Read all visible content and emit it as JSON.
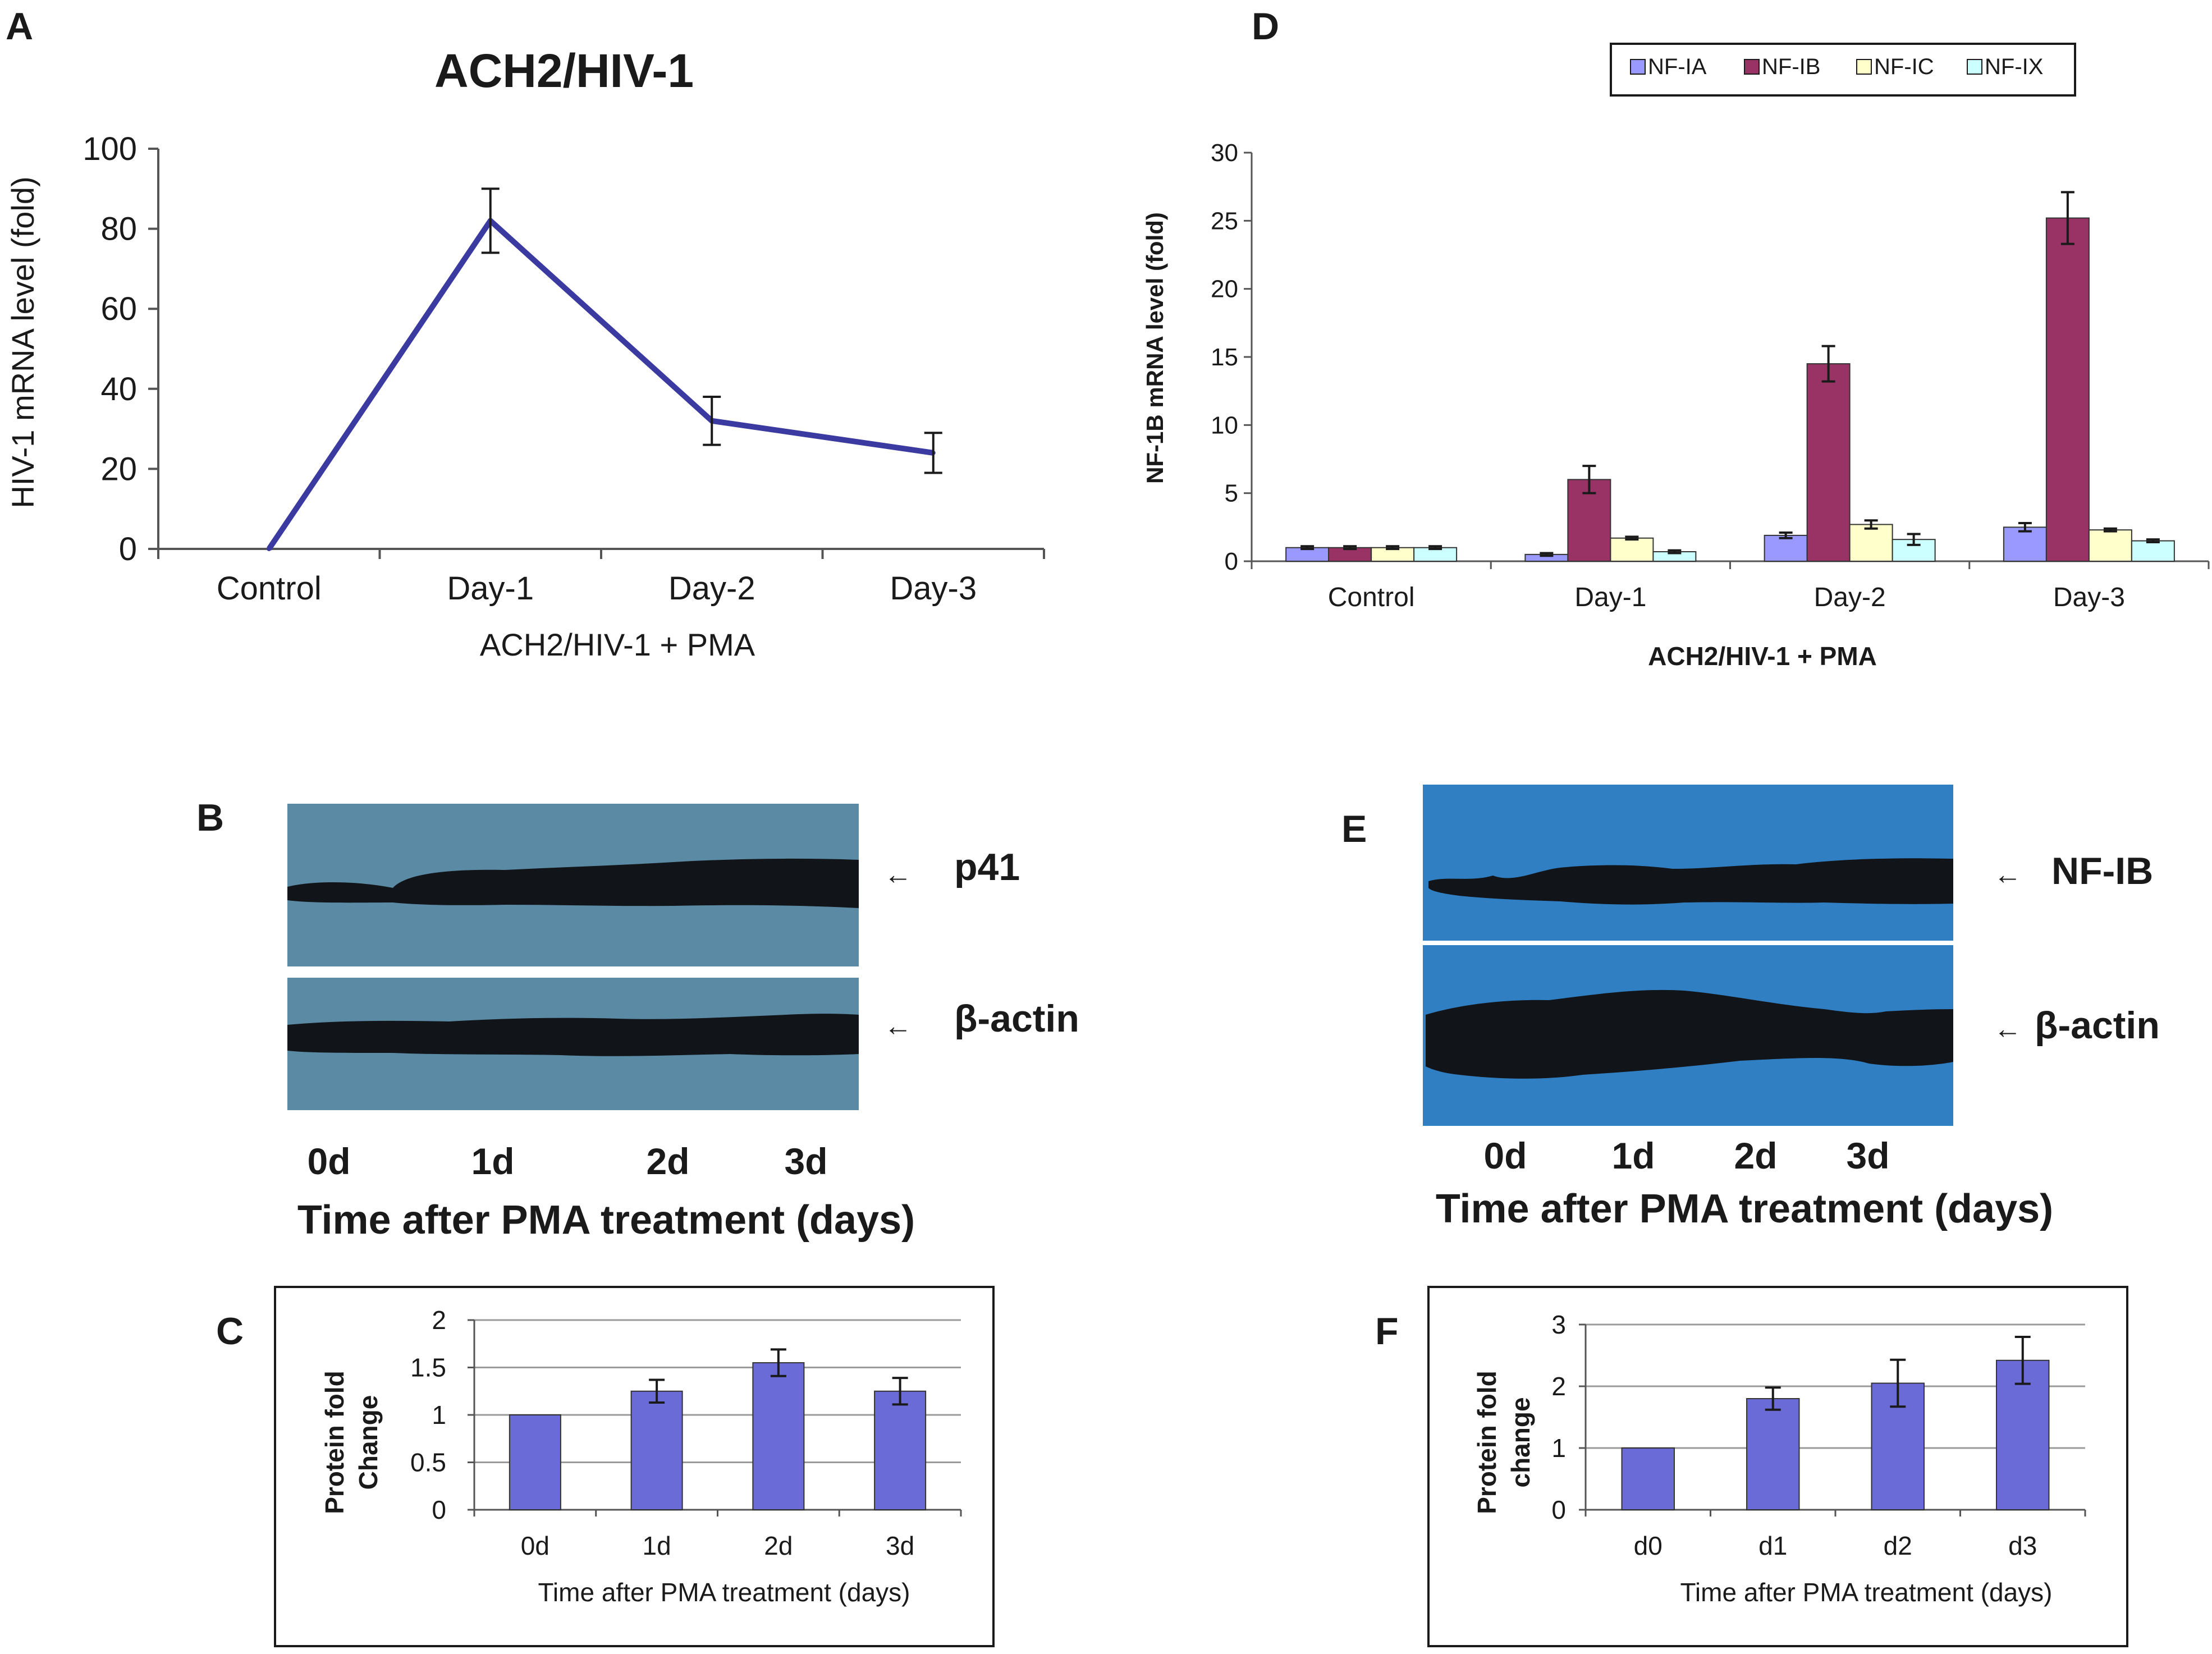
{
  "colors": {
    "line": "#3a3aa0",
    "bar": "#6b6bd8",
    "nf_ia": "#9999ff",
    "nf_ib": "#993366",
    "nf_ic": "#ffffcc",
    "nf_ix": "#ccffff",
    "blot_bg_b": "#5b8aa4",
    "blot_bg_e": "#2f7fc2",
    "band": "#111418"
  },
  "panel_labels": {
    "a": "A",
    "b": "B",
    "c": "C",
    "d": "D",
    "e": "E",
    "f": "F"
  },
  "chart_data": [
    {
      "panel": "A",
      "type": "line",
      "title": "ACH2/HIV-1",
      "categories": [
        "Control",
        "Day-1",
        "Day-2",
        "Day-3"
      ],
      "values": [
        0,
        82,
        32,
        24
      ],
      "errors": [
        0,
        8,
        6,
        5
      ],
      "ylabel": "HIV-1 mRNA level (fold)",
      "xlabel": "ACH2/HIV-1 + PMA",
      "ylim": [
        0,
        100
      ],
      "yticks": [
        "0",
        "20",
        "40",
        "60",
        "80",
        "100"
      ]
    },
    {
      "panel": "D",
      "type": "bar",
      "categories": [
        "Control",
        "Day-1",
        "Day-2",
        "Day-3"
      ],
      "series": [
        {
          "name": "NF-IA",
          "values": [
            1.0,
            0.5,
            1.9,
            2.5
          ],
          "errors": [
            0.1,
            0.1,
            0.2,
            0.3
          ]
        },
        {
          "name": "NF-IB",
          "values": [
            1.0,
            6.0,
            14.5,
            25.2
          ],
          "errors": [
            0.1,
            1.0,
            1.3,
            1.9
          ]
        },
        {
          "name": "NF-IC",
          "values": [
            1.0,
            1.7,
            2.7,
            2.3
          ],
          "errors": [
            0.1,
            0.1,
            0.3,
            0.1
          ]
        },
        {
          "name": "NF-IX",
          "values": [
            1.0,
            0.7,
            1.6,
            1.5
          ],
          "errors": [
            0.1,
            0.1,
            0.4,
            0.1
          ]
        }
      ],
      "ylabel": "NF-1B  mRNA level  (fold)",
      "xlabel": "ACH2/HIV-1  + PMA",
      "ylim": [
        0,
        30
      ],
      "yticks": [
        "0",
        "5",
        "10",
        "15",
        "20",
        "25",
        "30"
      ],
      "legend": "top"
    },
    {
      "panel": "C",
      "type": "bar",
      "categories": [
        "0d",
        "1d",
        "2d",
        "3d"
      ],
      "values": [
        1.0,
        1.25,
        1.55,
        1.25
      ],
      "errors": [
        0,
        0.12,
        0.14,
        0.14
      ],
      "ylabel": "Protein fold Change",
      "xlabel": "Time after PMA treatment (days)",
      "ylim": [
        0,
        2
      ],
      "yticks": [
        "0",
        "0.5",
        "1",
        "1.5",
        "2"
      ]
    },
    {
      "panel": "F",
      "type": "bar",
      "categories": [
        "d0",
        "d1",
        "d2",
        "d3"
      ],
      "values": [
        1.0,
        1.8,
        2.05,
        2.42
      ],
      "errors": [
        0,
        0.18,
        0.38,
        0.38
      ],
      "ylabel": "Protein fold change",
      "xlabel": "Time after PMA treatment (days)",
      "ylim": [
        0,
        3
      ],
      "yticks": [
        "0",
        "1",
        "2",
        "3"
      ]
    }
  ],
  "blot_b": {
    "bands": [
      "p41",
      "β-actin"
    ],
    "lanes": [
      "0d",
      "1d",
      "2d",
      "3d"
    ],
    "xlabel": "Time after PMA treatment (days)"
  },
  "blot_e": {
    "bands": [
      "NF-IB",
      "β-actin"
    ],
    "lanes": [
      "0d",
      "1d",
      "2d",
      "3d"
    ],
    "xlabel": "Time after PMA treatment (days)"
  }
}
